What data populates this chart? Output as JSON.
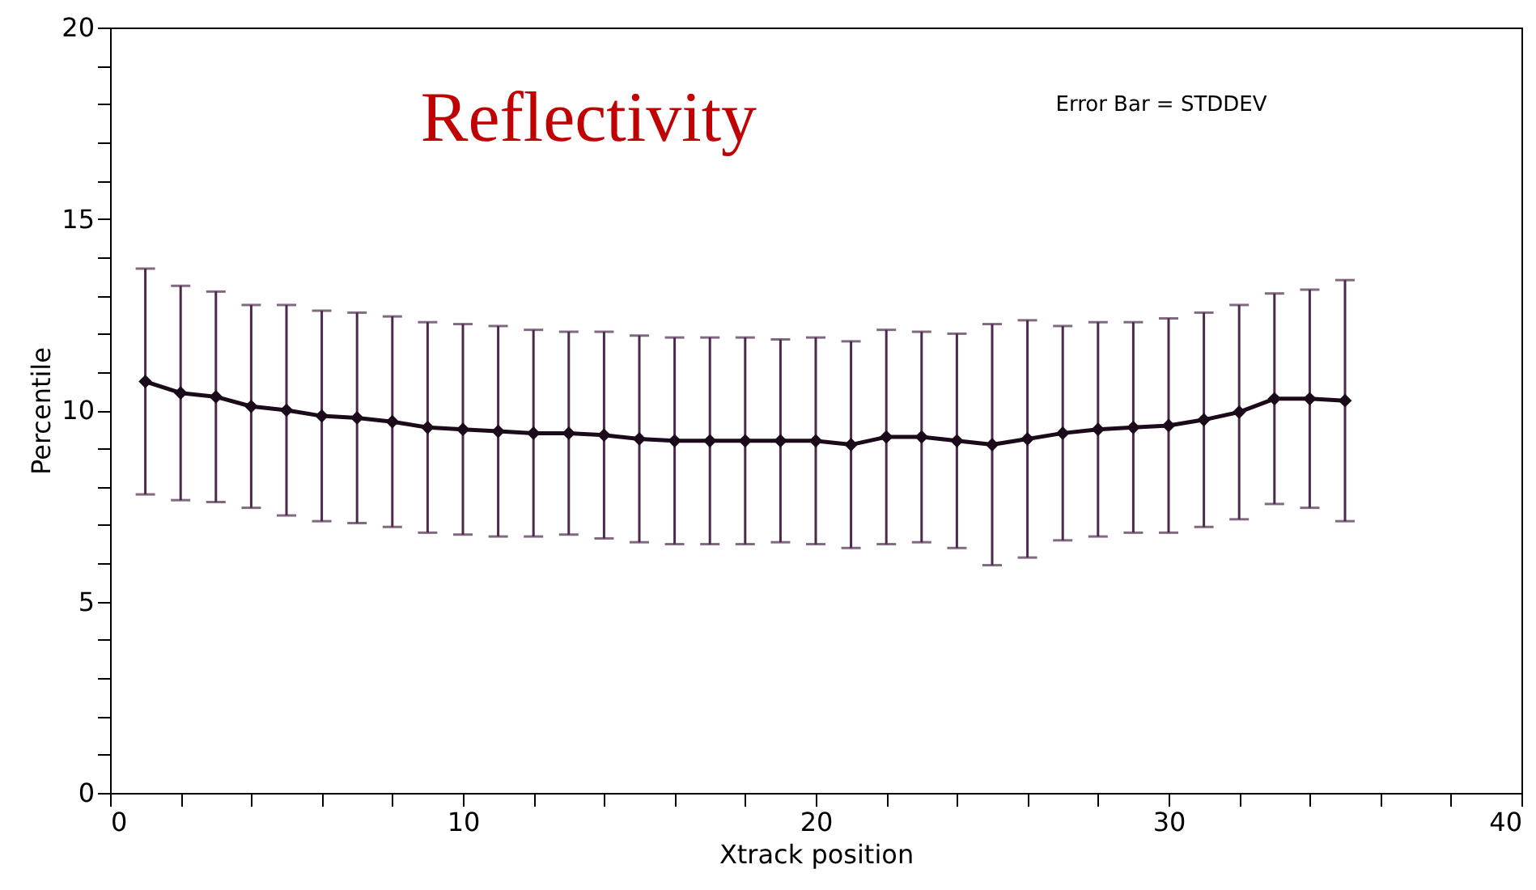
{
  "chart_data": {
    "type": "line",
    "xlabel": "Xtrack position",
    "ylabel": "Percentile",
    "annotations": [
      "Reflectivity",
      "Error Bar = STDDEV"
    ],
    "x": [
      1,
      2,
      3,
      4,
      5,
      6,
      7,
      8,
      9,
      10,
      11,
      12,
      13,
      14,
      15,
      16,
      17,
      18,
      19,
      20,
      21,
      22,
      23,
      24,
      25,
      26,
      27,
      28,
      29,
      30,
      31,
      32,
      33,
      34,
      35
    ],
    "series": [
      {
        "color": "#1a0a1a",
        "marker": "diamond",
        "values": [
          10.75,
          10.45,
          10.35,
          10.1,
          10.0,
          9.85,
          9.8,
          9.7,
          9.55,
          9.5,
          9.45,
          9.4,
          9.4,
          9.35,
          9.25,
          9.2,
          9.2,
          9.2,
          9.2,
          9.2,
          9.1,
          9.3,
          9.3,
          9.2,
          9.1,
          9.25,
          9.4,
          9.5,
          9.55,
          9.6,
          9.75,
          9.95,
          10.3,
          10.3,
          10.25
        ],
        "errors": [
          2.95,
          2.8,
          2.75,
          2.65,
          2.75,
          2.75,
          2.75,
          2.75,
          2.75,
          2.75,
          2.75,
          2.7,
          2.65,
          2.7,
          2.7,
          2.7,
          2.7,
          2.7,
          2.65,
          2.7,
          2.7,
          2.8,
          2.75,
          2.8,
          3.15,
          3.1,
          2.8,
          2.8,
          2.75,
          2.8,
          2.8,
          2.8,
          2.75,
          2.85,
          3.15
        ]
      }
    ],
    "xlim": [
      0,
      40
    ],
    "ylim": [
      0,
      20
    ],
    "xticks": [
      0,
      {
        "value": 2,
        "label": null
      },
      {
        "value": 4,
        "label": null
      },
      {
        "value": 6,
        "label": null
      },
      {
        "value": 8,
        "label": null
      },
      10,
      {
        "value": 12,
        "label": null
      },
      {
        "value": 14,
        "label": null
      },
      {
        "value": 16,
        "label": null
      },
      {
        "value": 18,
        "label": null
      },
      20,
      {
        "value": 22,
        "label": null
      },
      {
        "value": 24,
        "label": null
      },
      {
        "value": 26,
        "label": null
      },
      {
        "value": 28,
        "label": null
      },
      30,
      {
        "value": 32,
        "label": null
      },
      {
        "value": 34,
        "label": null
      },
      {
        "value": 36,
        "label": null
      },
      {
        "value": 38,
        "label": null
      },
      40
    ],
    "yticks": [
      0,
      {
        "value": 1,
        "label": null
      },
      {
        "value": 2,
        "label": null
      },
      {
        "value": 3,
        "label": null
      },
      {
        "value": 4,
        "label": null
      },
      5,
      {
        "value": 6,
        "label": null
      },
      {
        "value": 7,
        "label": null
      },
      {
        "value": 8,
        "label": null
      },
      {
        "value": 9,
        "label": null
      },
      10,
      {
        "value": 11,
        "label": null
      },
      {
        "value": 12,
        "label": null
      },
      {
        "value": 13,
        "label": null
      },
      {
        "value": 14,
        "label": null
      },
      15,
      {
        "value": 16,
        "label": null
      },
      {
        "value": 17,
        "label": null
      },
      {
        "value": 18,
        "label": null
      },
      {
        "value": 19,
        "label": null
      },
      20
    ],
    "grid": false,
    "line_style": "solid"
  }
}
